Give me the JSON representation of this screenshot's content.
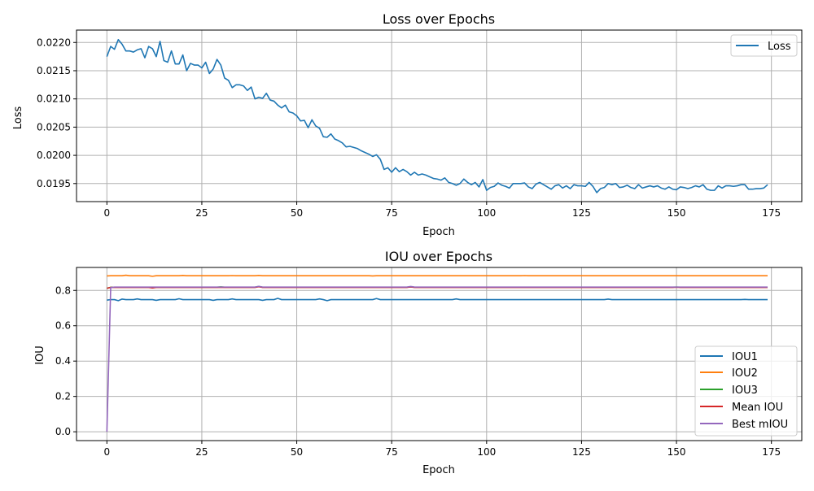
{
  "colors": {
    "blue": "#1f77b4",
    "orange": "#ff7f0e",
    "green": "#2ca02c",
    "red": "#d62728",
    "purple": "#9467bd",
    "grid": "#b0b0b0"
  },
  "chart_data": [
    {
      "type": "line",
      "title": "Loss over Epochs",
      "xlabel": "Epoch",
      "ylabel": "Loss",
      "xlim": [
        -8,
        183
      ],
      "ylim": [
        0.01918,
        0.02222
      ],
      "xticks": [
        0,
        25,
        50,
        75,
        100,
        125,
        150,
        175
      ],
      "yticks": [
        0.0195,
        0.02,
        0.0205,
        0.021,
        0.0215,
        0.022
      ],
      "ytick_labels": [
        "0.0195",
        "0.0200",
        "0.0205",
        "0.0210",
        "0.0215",
        "0.0220"
      ],
      "grid": true,
      "legend_position": "top-right",
      "series": [
        {
          "name": "Loss",
          "color": "blue",
          "x_start": 0,
          "values": [
            0.02175,
            0.02193,
            0.02188,
            0.02205,
            0.02197,
            0.02185,
            0.02185,
            0.02183,
            0.02187,
            0.02189,
            0.02173,
            0.02193,
            0.02189,
            0.02175,
            0.02202,
            0.02168,
            0.02165,
            0.02185,
            0.02162,
            0.02162,
            0.02178,
            0.0215,
            0.02163,
            0.0216,
            0.0216,
            0.02155,
            0.02165,
            0.02145,
            0.02153,
            0.0217,
            0.0216,
            0.02137,
            0.02133,
            0.0212,
            0.02125,
            0.02125,
            0.02123,
            0.02115,
            0.02121,
            0.021,
            0.02103,
            0.02101,
            0.0211,
            0.02098,
            0.02096,
            0.02089,
            0.02084,
            0.02089,
            0.02077,
            0.02075,
            0.0207,
            0.02061,
            0.02062,
            0.02049,
            0.02063,
            0.02052,
            0.02048,
            0.02033,
            0.02032,
            0.02038,
            0.02029,
            0.02026,
            0.02022,
            0.02015,
            0.02016,
            0.02014,
            0.02012,
            0.02008,
            0.02005,
            0.02002,
            0.01998,
            0.02001,
            0.01993,
            0.01975,
            0.01978,
            0.0197,
            0.01978,
            0.01971,
            0.01975,
            0.01971,
            0.01965,
            0.0197,
            0.01965,
            0.01967,
            0.01965,
            0.01962,
            0.01959,
            0.01958,
            0.01956,
            0.0196,
            0.01952,
            0.0195,
            0.01947,
            0.0195,
            0.01958,
            0.01952,
            0.01948,
            0.01952,
            0.01944,
            0.01957,
            0.01938,
            0.01943,
            0.01945,
            0.01951,
            0.01947,
            0.01945,
            0.01942,
            0.0195,
            0.0195,
            0.0195,
            0.01951,
            0.01944,
            0.01941,
            0.01949,
            0.01952,
            0.01948,
            0.01944,
            0.0194,
            0.01946,
            0.01948,
            0.01942,
            0.01946,
            0.01941,
            0.01948,
            0.01946,
            0.01946,
            0.01945,
            0.01952,
            0.01945,
            0.01934,
            0.01941,
            0.01943,
            0.0195,
            0.01948,
            0.0195,
            0.01943,
            0.01944,
            0.01947,
            0.01943,
            0.01941,
            0.01948,
            0.01942,
            0.01944,
            0.01946,
            0.01944,
            0.01946,
            0.01942,
            0.0194,
            0.01944,
            0.0194,
            0.01939,
            0.01944,
            0.01943,
            0.01941,
            0.01943,
            0.01946,
            0.01944,
            0.01948,
            0.0194,
            0.01938,
            0.01938,
            0.01946,
            0.01942,
            0.01946,
            0.01946,
            0.01945,
            0.01946,
            0.01948,
            0.01948,
            0.0194,
            0.0194,
            0.01941,
            0.01941,
            0.01942,
            0.01948
          ]
        }
      ]
    },
    {
      "type": "line",
      "title": "IOU over Epochs",
      "xlabel": "Epoch",
      "ylabel": "IOU",
      "xlim": [
        -8,
        183
      ],
      "ylim": [
        -0.05,
        0.93
      ],
      "xticks": [
        0,
        25,
        50,
        75,
        100,
        125,
        150,
        175
      ],
      "yticks": [
        0.0,
        0.2,
        0.4,
        0.6,
        0.8
      ],
      "ytick_labels": [
        "0.0",
        "0.2",
        "0.4",
        "0.6",
        "0.8"
      ],
      "grid": true,
      "legend_position": "lower-right",
      "x_start": 0,
      "n_points": 175,
      "series": [
        {
          "name": "IOU1",
          "color": "blue",
          "base": 0.748,
          "overrides": {
            "0": 0.745,
            "3": 0.742,
            "4": 0.751,
            "8": 0.752,
            "13": 0.744,
            "19": 0.753,
            "28": 0.744,
            "33": 0.752,
            "41": 0.744,
            "45": 0.755,
            "56": 0.752,
            "58": 0.742,
            "71": 0.754,
            "92": 0.752,
            "132": 0.751,
            "168": 0.749
          }
        },
        {
          "name": "IOU2",
          "color": "orange",
          "base": 0.883,
          "overrides": {
            "0": 0.882,
            "5": 0.886,
            "12": 0.88,
            "20": 0.885,
            "33": 0.884,
            "40": 0.885,
            "70": 0.882,
            "110": 0.884,
            "150": 0.883
          }
        },
        {
          "name": "IOU3",
          "color": "green",
          "base": 0.818,
          "overrides": {
            "0": 0.812,
            "12": 0.815,
            "30": 0.82,
            "40": 0.822,
            "80": 0.82,
            "150": 0.819
          }
        },
        {
          "name": "Mean IOU",
          "color": "red",
          "base": 0.817,
          "overrides": {
            "0": 0.812,
            "12": 0.814,
            "40": 0.821,
            "80": 0.82,
            "150": 0.818
          }
        },
        {
          "name": "Best mIOU",
          "color": "purple",
          "base": 0.819,
          "overrides": {
            "0": 0.0,
            "1": 0.816,
            "40": 0.823,
            "80": 0.822
          }
        }
      ]
    }
  ]
}
